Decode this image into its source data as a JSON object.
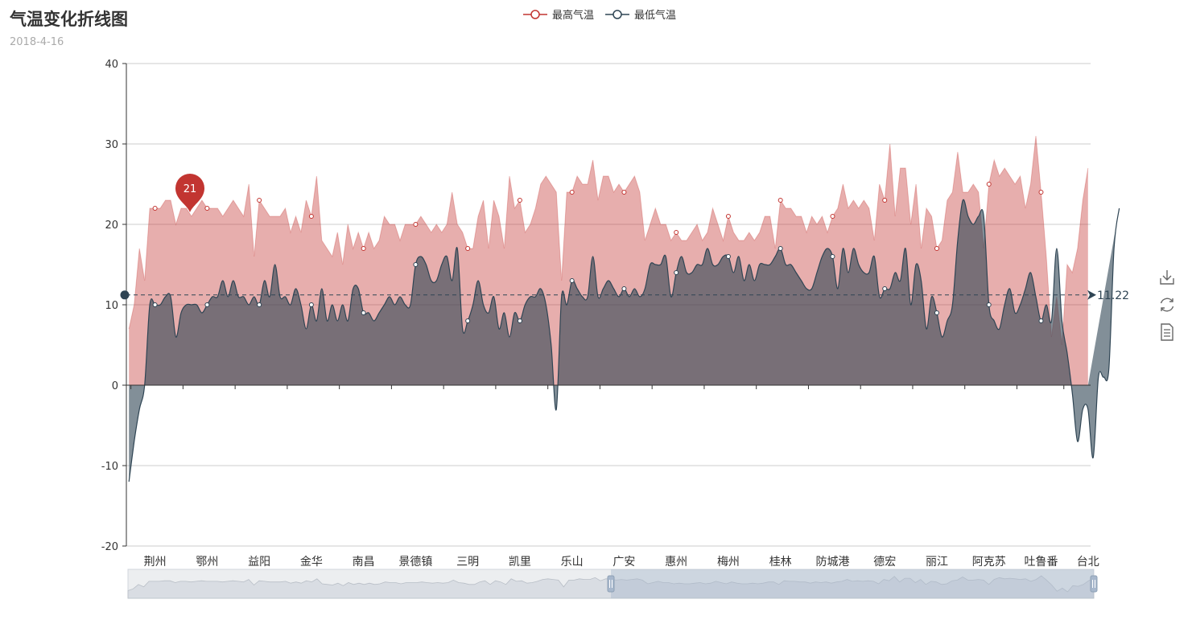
{
  "title": "气温变化折线图",
  "subtitle": "2018-4-16",
  "legend": [
    {
      "name": "最高气温",
      "color": "#c23531"
    },
    {
      "name": "最低气温",
      "color": "#2f4554"
    }
  ],
  "toolbox": [
    {
      "name": "save-as-image-icon"
    },
    {
      "name": "restore-icon"
    },
    {
      "name": "data-view-icon"
    }
  ],
  "chart_data": {
    "type": "area",
    "ylim": [
      -20,
      40
    ],
    "yticks": [
      -20,
      -10,
      0,
      10,
      20,
      30,
      40
    ],
    "x_labels": [
      "荆州",
      "鄂州",
      "益阳",
      "金华",
      "南昌",
      "景德镇",
      "三明",
      "凯里",
      "乐山",
      "广安",
      "惠州",
      "梅州",
      "桂林",
      "防城港",
      "德宏",
      "丽江",
      "阿克苏",
      "吐鲁番",
      "台北"
    ],
    "series": [
      {
        "name": "最高气温",
        "color": "#c23531",
        "smooth": false,
        "values": [
          7,
          10,
          17,
          13,
          22,
          22,
          22,
          23,
          23,
          20,
          22,
          22,
          21,
          22,
          23,
          22,
          22,
          22,
          21,
          22,
          23,
          22,
          21,
          25,
          16,
          23,
          22,
          21,
          21,
          21,
          22,
          19,
          21,
          19,
          23,
          21,
          26,
          18,
          17,
          16,
          19,
          15,
          20,
          17,
          19,
          17,
          19,
          17,
          18,
          21,
          20,
          20,
          18,
          20,
          20,
          20,
          21,
          20,
          19,
          20,
          19,
          20,
          24,
          20,
          19,
          17,
          17,
          21,
          23,
          17,
          23,
          21,
          17,
          26,
          22,
          23,
          19,
          20,
          22,
          25,
          26,
          25,
          24,
          13,
          24,
          24,
          26,
          25,
          25,
          28,
          23,
          26,
          26,
          24,
          25,
          24,
          25,
          26,
          24,
          18,
          20,
          22,
          20,
          20,
          18,
          19,
          18,
          18,
          19,
          20,
          18,
          19,
          22,
          20,
          18,
          21,
          19,
          18,
          18,
          19,
          18,
          19,
          21,
          21,
          17,
          23,
          22,
          22,
          21,
          21,
          19,
          21,
          20,
          21,
          19,
          21,
          22,
          25,
          22,
          23,
          22,
          23,
          22,
          18,
          25,
          23,
          30,
          21,
          27,
          27,
          20,
          25,
          17,
          22,
          21,
          17,
          18,
          23,
          24,
          29,
          24,
          24,
          25,
          24,
          17,
          25,
          28,
          26,
          27,
          26,
          25,
          26,
          22,
          25,
          31,
          24,
          16,
          6,
          11,
          5,
          15,
          14,
          17,
          23,
          27
        ]
      },
      {
        "name": "最低气温",
        "color": "#2f4554",
        "smooth": true,
        "values": [
          -12,
          -7,
          -3,
          0,
          10,
          10,
          10,
          11,
          11,
          6,
          9,
          10,
          10,
          10,
          9,
          10,
          11,
          11,
          13,
          11,
          13,
          11,
          11,
          10,
          11,
          10,
          13,
          11,
          15,
          11,
          11,
          10,
          12,
          10,
          7,
          10,
          8,
          12,
          8,
          10,
          8,
          10,
          8,
          12,
          12,
          9,
          9,
          8,
          9,
          10,
          11,
          10,
          11,
          10,
          10,
          15,
          16,
          15,
          13,
          13,
          15,
          16,
          13,
          17,
          7,
          8,
          10,
          13,
          10,
          9,
          11,
          7,
          9,
          6,
          9,
          8,
          10,
          11,
          11,
          12,
          10,
          5,
          -3,
          11,
          10,
          13,
          12,
          11,
          11,
          16,
          11,
          12,
          13,
          12,
          11,
          12,
          11,
          12,
          11,
          12,
          15,
          15,
          15,
          16,
          11,
          14,
          16,
          14,
          14,
          15,
          15,
          17,
          15,
          15,
          16,
          16,
          14,
          16,
          13,
          15,
          13,
          15,
          15,
          15,
          16,
          17,
          15,
          15,
          14,
          13,
          12,
          12,
          14,
          16,
          17,
          16,
          12,
          17,
          14,
          17,
          15,
          14,
          14,
          16,
          11,
          12,
          12,
          14,
          13,
          17,
          10,
          15,
          13,
          7,
          11,
          9,
          6,
          8,
          10,
          18,
          23,
          21,
          20,
          21,
          21,
          10,
          8,
          7,
          10,
          12,
          9,
          10,
          12,
          14,
          11,
          8,
          10,
          8,
          17,
          8,
          4,
          -1,
          -7,
          -3,
          -3,
          -9,
          1,
          1,
          2,
          17,
          22
        ]
      }
    ],
    "markPoint": {
      "series": "最高气温",
      "label": "21"
    },
    "markLine": {
      "label": "11.22",
      "value": 11.22
    },
    "dataZoom": {
      "start": 0.5,
      "end": 1.0
    }
  }
}
